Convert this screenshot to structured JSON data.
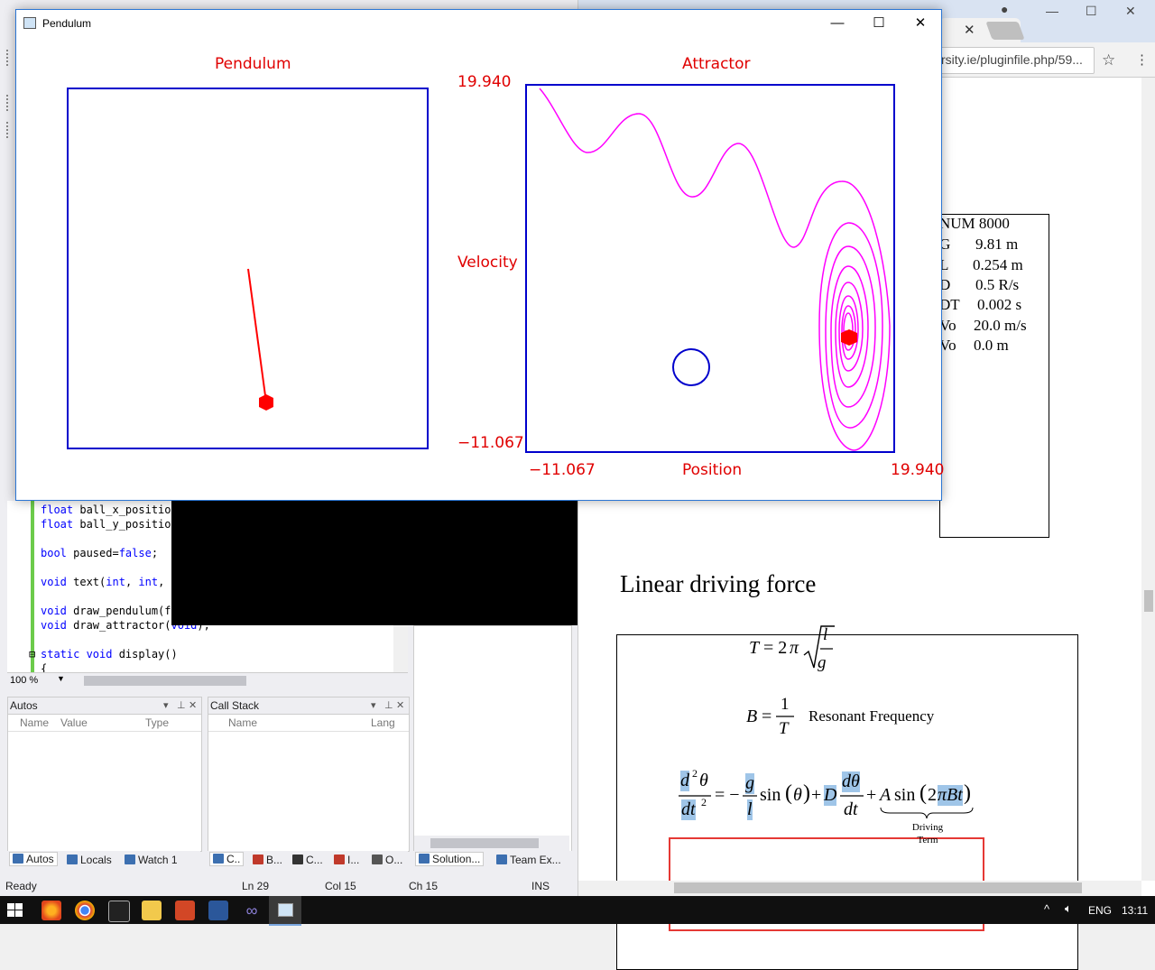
{
  "pendulum_window": {
    "title": "Pendulum",
    "minimize": "—",
    "maximize": "☐",
    "close": "✕",
    "pendulum_panel_title": "Pendulum",
    "attractor_panel_title": "Attractor",
    "axis": {
      "y_max": "19.940",
      "y_min": "−11.067",
      "y_label": "Velocity",
      "x_min": "−11.067",
      "x_max": "19.940",
      "x_label": "Position"
    },
    "colors": {
      "labels": "#e00000",
      "frames": "#0000cc",
      "trajectory": "#ff00ff",
      "bob": "#ff0000"
    }
  },
  "vs": {
    "code_lines": [
      {
        "kw": "float",
        "rest": " ball_x_position"
      },
      {
        "kw": "float",
        "rest": " ball_y_position"
      },
      {
        "kw": "",
        "rest": ""
      },
      {
        "kw": "bool",
        "rest": " paused=",
        "kw2": "false",
        "rest2": ";"
      },
      {
        "kw": "",
        "rest": ""
      },
      {
        "kw": "void",
        "rest": " text(",
        "kw2": "int",
        "rest2": ", ",
        "kw3": "int",
        "rest3": ", c"
      },
      {
        "kw": "",
        "rest": ""
      },
      {
        "kw": "void",
        "rest": " draw_pendulum(fl"
      },
      {
        "kw": "void",
        "rest": " draw_attractor(",
        "kw2": "void",
        "rest2": ");"
      },
      {
        "kw": "",
        "rest": ""
      },
      {
        "kw": "static void",
        "rest": " display()"
      },
      {
        "kw": "",
        "rest": "{"
      }
    ],
    "zoom": "100 %",
    "autos": {
      "title": "Autos",
      "cols": [
        "Name",
        "Value",
        "Type"
      ]
    },
    "callstack": {
      "title": "Call Stack",
      "cols": [
        "Name",
        "Lang"
      ]
    },
    "tabs_left": [
      "Autos",
      "Locals",
      "Watch 1"
    ],
    "tabs_mid": [
      "C..",
      "B...",
      "C...",
      "I...",
      "O..."
    ],
    "tabs_right": [
      "Solution...",
      "Team Ex..."
    ],
    "status": {
      "ready": "Ready",
      "ln": "Ln 29",
      "col": "Col 15",
      "ch": "Ch 15",
      "ins": "INS"
    }
  },
  "browser": {
    "url": "rsity.ie/pluginfile.php/59...",
    "doc_lines": [
      "NUM 8000",
      "G",
      "9.81 m",
      "L",
      "0.254 m",
      "D",
      "0.5 R/s",
      "DT",
      "0.002 s",
      "Vo",
      "20.0 m/s",
      "Vo",
      "0.0 m"
    ],
    "ldf_title": "Linear driving force",
    "resonant": "Resonant Frequency",
    "driving_term": "Driving Term"
  },
  "taskbar": {
    "lang": "ENG",
    "time": "13:11"
  }
}
